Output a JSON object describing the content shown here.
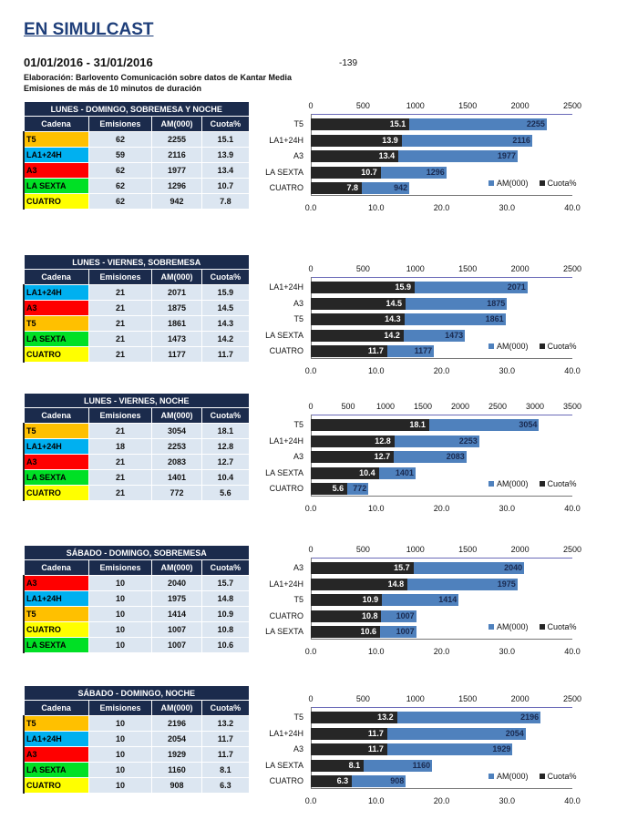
{
  "header": {
    "title": "EN SIMULCAST",
    "date_range": "01/01/2016 - 31/01/2016",
    "code": "-139",
    "source": "Elaboración:  Barlovento Comunicación  sobre datos de Kantar Media",
    "note": "Emisiones de más de 10 minutos de duración"
  },
  "columns": [
    "Cadena",
    "Emisiones",
    "AM(000)",
    "Cuota%"
  ],
  "channel_colors": {
    "T5": "#FFC000",
    "LA1+24H": "#00B0F0",
    "A3": "#FF0000",
    "LA SEXTA": "#00E025",
    "CUATRO": "#FFFF00"
  },
  "bar_colors": {
    "am": "#4f81bd",
    "cuota": "#262626"
  },
  "sections": [
    {
      "title": "LUNES - DOMINGO, SOBREMESA Y NOCHE",
      "rows": [
        [
          "T5",
          62,
          2255,
          15.1
        ],
        [
          "LA1+24H",
          59,
          2116,
          13.9
        ],
        [
          "A3",
          62,
          1977,
          13.4
        ],
        [
          "LA SEXTA",
          62,
          1296,
          10.7
        ],
        [
          "CUATRO",
          62,
          942,
          7.8
        ]
      ]
    },
    {
      "title": "LUNES - VIERNES, SOBREMESA",
      "rows": [
        [
          "LA1+24H",
          21,
          2071,
          15.9
        ],
        [
          "A3",
          21,
          1875,
          14.5
        ],
        [
          "T5",
          21,
          1861,
          14.3
        ],
        [
          "LA SEXTA",
          21,
          1473,
          14.2
        ],
        [
          "CUATRO",
          21,
          1177,
          11.7
        ]
      ]
    },
    {
      "title": "LUNES - VIERNES, NOCHE",
      "rows": [
        [
          "T5",
          21,
          3054,
          18.1
        ],
        [
          "LA1+24H",
          18,
          2253,
          12.8
        ],
        [
          "A3",
          21,
          2083,
          12.7
        ],
        [
          "LA SEXTA",
          21,
          1401,
          10.4
        ],
        [
          "CUATRO",
          21,
          772,
          5.6
        ]
      ]
    },
    {
      "title": "SÁBADO - DOMINGO, SOBREMESA",
      "rows": [
        [
          "A3",
          10,
          2040,
          15.7
        ],
        [
          "LA1+24H",
          10,
          1975,
          14.8
        ],
        [
          "T5",
          10,
          1414,
          10.9
        ],
        [
          "CUATRO",
          10,
          1007,
          10.8
        ],
        [
          "LA SEXTA",
          10,
          1007,
          10.6
        ]
      ]
    },
    {
      "title": "SÁBADO - DOMINGO, NOCHE",
      "rows": [
        [
          "T5",
          10,
          2196,
          13.2
        ],
        [
          "LA1+24H",
          10,
          2054,
          11.7
        ],
        [
          "A3",
          10,
          1929,
          11.7
        ],
        [
          "LA SEXTA",
          10,
          1160,
          8.1
        ],
        [
          "CUATRO",
          10,
          908,
          6.3
        ]
      ]
    }
  ],
  "chart_data": [
    {
      "type": "bar",
      "orientation": "horizontal",
      "categories": [
        "T5",
        "LA1+24H",
        "A3",
        "LA SEXTA",
        "CUATRO"
      ],
      "series": [
        {
          "name": "AM(000)",
          "values": [
            2255,
            2116,
            1977,
            1296,
            942
          ],
          "axis": "top",
          "xlim": [
            0,
            2500
          ],
          "ticks": [
            "0",
            "500",
            "1000",
            "1500",
            "2000",
            "2500"
          ]
        },
        {
          "name": "Cuota%",
          "values": [
            15.1,
            13.9,
            13.4,
            10.7,
            7.8
          ],
          "axis": "bottom",
          "xlim": [
            0,
            40
          ],
          "ticks": [
            "0.0",
            "10.0",
            "20.0",
            "30.0",
            "40.0"
          ]
        }
      ],
      "legend": "bottom-right"
    },
    {
      "type": "bar",
      "orientation": "horizontal",
      "categories": [
        "LA1+24H",
        "A3",
        "T5",
        "LA SEXTA",
        "CUATRO"
      ],
      "series": [
        {
          "name": "AM(000)",
          "values": [
            2071,
            1875,
            1861,
            1473,
            1177
          ],
          "axis": "top",
          "xlim": [
            0,
            2500
          ],
          "ticks": [
            "0",
            "500",
            "1000",
            "1500",
            "2000",
            "2500"
          ]
        },
        {
          "name": "Cuota%",
          "values": [
            15.9,
            14.5,
            14.3,
            14.2,
            11.7
          ],
          "axis": "bottom",
          "xlim": [
            0,
            40
          ],
          "ticks": [
            "0.0",
            "10.0",
            "20.0",
            "30.0",
            "40.0"
          ]
        }
      ],
      "legend": "bottom-right"
    },
    {
      "type": "bar",
      "orientation": "horizontal",
      "categories": [
        "T5",
        "LA1+24H",
        "A3",
        "LA SEXTA",
        "CUATRO"
      ],
      "series": [
        {
          "name": "AM(000)",
          "values": [
            3054,
            2253,
            2083,
            1401,
            772
          ],
          "axis": "top",
          "xlim": [
            0,
            3500
          ],
          "ticks": [
            "0",
            "500",
            "1000",
            "1500",
            "2000",
            "2500",
            "3000",
            "3500"
          ]
        },
        {
          "name": "Cuota%",
          "values": [
            18.1,
            12.8,
            12.7,
            10.4,
            5.6
          ],
          "axis": "bottom",
          "xlim": [
            0,
            40
          ],
          "ticks": [
            "0.0",
            "10.0",
            "20.0",
            "30.0",
            "40.0"
          ]
        }
      ],
      "legend": "bottom-right"
    },
    {
      "type": "bar",
      "orientation": "horizontal",
      "categories": [
        "A3",
        "LA1+24H",
        "T5",
        "CUATRO",
        "LA SEXTA"
      ],
      "series": [
        {
          "name": "AM(000)",
          "values": [
            2040,
            1975,
            1414,
            1007,
            1007
          ],
          "axis": "top",
          "xlim": [
            0,
            2500
          ],
          "ticks": [
            "0",
            "500",
            "1000",
            "1500",
            "2000",
            "2500"
          ]
        },
        {
          "name": "Cuota%",
          "values": [
            15.7,
            14.8,
            10.9,
            10.8,
            10.6
          ],
          "axis": "bottom",
          "xlim": [
            0,
            40
          ],
          "ticks": [
            "0.0",
            "10.0",
            "20.0",
            "30.0",
            "40.0"
          ]
        }
      ],
      "legend": "bottom-right"
    },
    {
      "type": "bar",
      "orientation": "horizontal",
      "categories": [
        "T5",
        "LA1+24H",
        "A3",
        "LA SEXTA",
        "CUATRO"
      ],
      "series": [
        {
          "name": "AM(000)",
          "values": [
            2196,
            2054,
            1929,
            1160,
            908
          ],
          "axis": "top",
          "xlim": [
            0,
            2500
          ],
          "ticks": [
            "0",
            "500",
            "1000",
            "1500",
            "2000",
            "2500"
          ]
        },
        {
          "name": "Cuota%",
          "values": [
            13.2,
            11.7,
            11.7,
            8.1,
            6.3
          ],
          "axis": "bottom",
          "xlim": [
            0,
            40
          ],
          "ticks": [
            "0.0",
            "10.0",
            "20.0",
            "30.0",
            "40.0"
          ]
        }
      ],
      "legend": "bottom-right"
    }
  ]
}
